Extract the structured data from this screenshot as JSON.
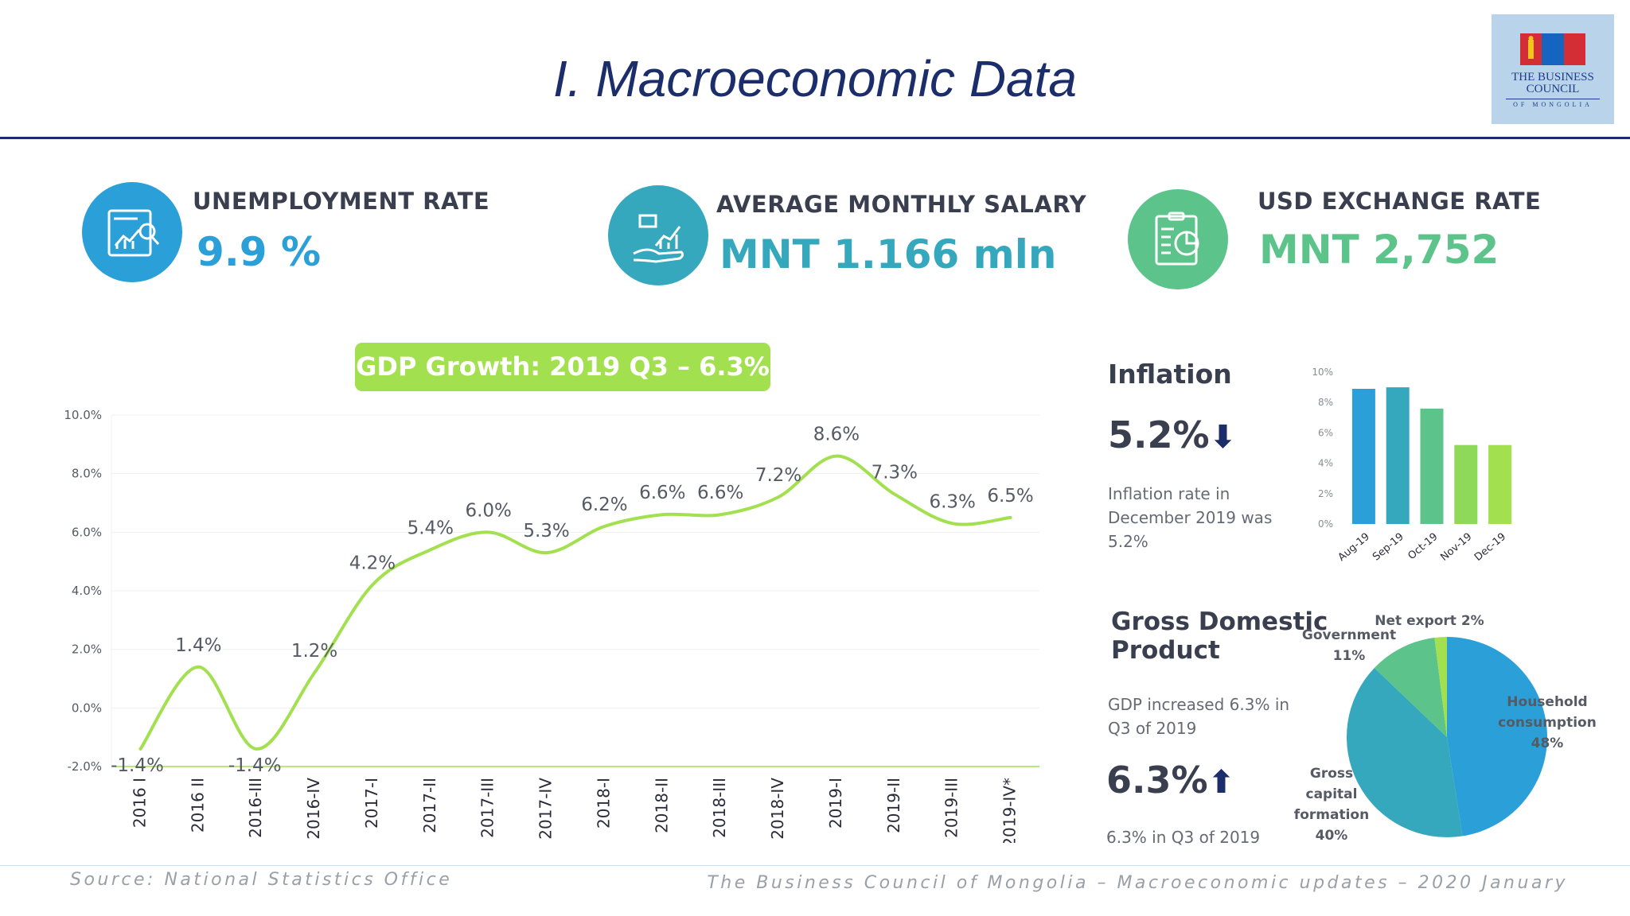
{
  "header": {
    "title": "I. Macroeconomic Data",
    "logo": {
      "line1": "THE BUSINESS",
      "line2": "COUNCIL",
      "line3": "OF MONGOLIA"
    }
  },
  "kpis": [
    {
      "label": "UNEMPLOYMENT RATE",
      "value": "9.9 %",
      "icon": "report-chart-icon",
      "color": "#2b9fd8"
    },
    {
      "label": "AVERAGE MONTHLY SALARY",
      "value": "MNT 1.166 mln",
      "icon": "hand-growth-icon",
      "color": "#35a8bd"
    },
    {
      "label": "USD EXCHANGE RATE",
      "value": "MNT 2,752",
      "icon": "clipboard-chart-icon",
      "color": "#5cc48a"
    }
  ],
  "gdp_badge": "GDP Growth: 2019 Q3 – 6.3%",
  "inflation": {
    "heading": "Inflation",
    "value": "5.2%",
    "arrow": "⬇",
    "description_lines": [
      "Inflation rate in",
      "December 2019 was",
      "5.2%"
    ]
  },
  "gdp_panel": {
    "heading_lines": [
      "Gross Domestic",
      "Product"
    ],
    "description_lines": [
      "GDP increased 6.3% in",
      "Q3 of 2019"
    ],
    "value": "6.3%",
    "arrow": "⬆",
    "note": "6.3% in  Q3 of 2019"
  },
  "footer": {
    "source": "Source: National Statistics Office",
    "credit": "The Business Council of Mongolia – Macroeconomic updates – 2020 January"
  },
  "chart_data": [
    {
      "type": "line",
      "title": "GDP Growth",
      "categories": [
        "2016 I",
        "2016 II",
        "2016-III",
        "2016-IV",
        "2017-I",
        "2017-II",
        "2017-III",
        "2017-IV",
        "2018-I",
        "2018-II",
        "2018-III",
        "2018-IV",
        "2019-I",
        "2019-II",
        "2019-III",
        "2019-IV*"
      ],
      "series": [
        {
          "name": "GDP growth",
          "values": [
            -1.4,
            1.4,
            -1.4,
            1.2,
            4.2,
            5.4,
            6.0,
            5.3,
            6.2,
            6.6,
            6.6,
            7.2,
            8.6,
            7.3,
            6.3,
            6.5
          ]
        }
      ],
      "data_labels": [
        "-1.4%",
        "1.4%",
        "-1.4%",
        "1.2%",
        "4.2%",
        "5.4%",
        "6.0%",
        "5.3%",
        "6.2%",
        "6.6%",
        "6.6%",
        "7.2%",
        "8.6%",
        "7.3%",
        "6.3%",
        "6.5%"
      ],
      "y_ticks": [
        "10.0%",
        "8.0%",
        "6.0%",
        "4.0%",
        "2.0%",
        "0.0%",
        "-2.0%"
      ],
      "ylim": [
        -2,
        10
      ],
      "line_color": "#a2e04f",
      "grid": true
    },
    {
      "type": "bar",
      "title": "Inflation",
      "categories": [
        "Aug-19",
        "Sep-19",
        "Oct-19",
        "Nov-19",
        "Dec-19"
      ],
      "values": [
        8.9,
        9.0,
        7.6,
        5.2,
        5.2
      ],
      "colors": [
        "#2b9fd8",
        "#35a8bd",
        "#5cc48a",
        "#8ed85a",
        "#a2e04f"
      ],
      "y_ticks": [
        "10%",
        "8%",
        "6%",
        "4%",
        "2%",
        "0%"
      ],
      "ylim": [
        0,
        10
      ]
    },
    {
      "type": "pie",
      "title": "Gross Domestic Product",
      "slices": [
        {
          "label": "Household consumption",
          "display": [
            "Household",
            "consumption",
            "48%"
          ],
          "value": 48,
          "color": "#2b9fd8"
        },
        {
          "label": "Gross capital formation",
          "display": [
            "Gross",
            "capital",
            "formation",
            "40%"
          ],
          "value": 40,
          "color": "#35a8bd"
        },
        {
          "label": "Government",
          "display": [
            "Government",
            "11%"
          ],
          "value": 11,
          "color": "#5cc48a"
        },
        {
          "label": "Net export",
          "display": [
            "Net export 2%"
          ],
          "value": 2,
          "color": "#a2e04f"
        }
      ]
    }
  ]
}
